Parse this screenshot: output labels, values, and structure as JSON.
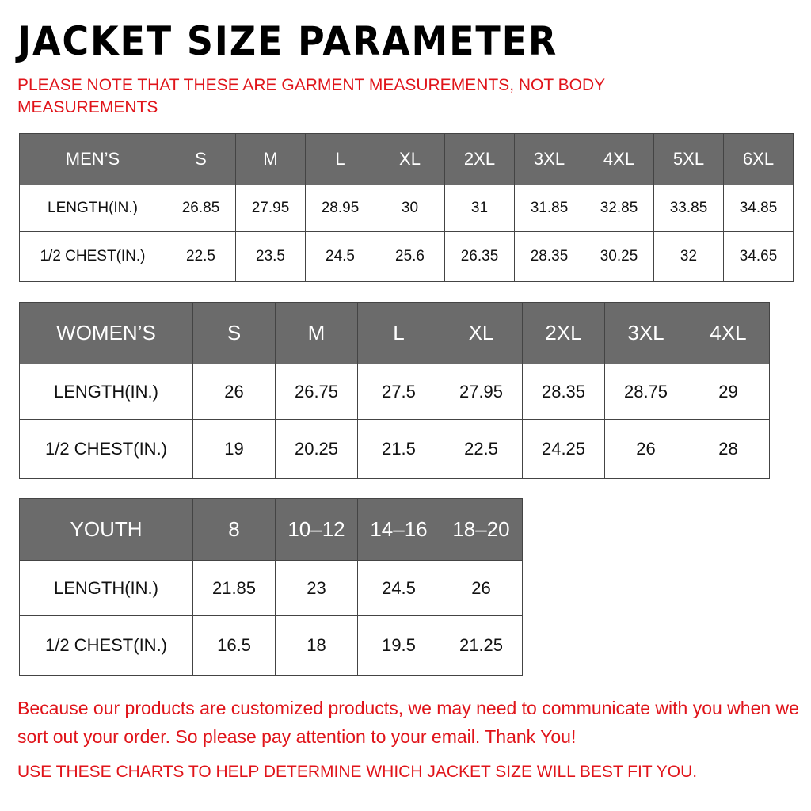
{
  "title": "JACKET SIZE PARAMETER",
  "note": "PLEASE NOTE THAT THESE ARE GARMENT MEASUREMENTS, NOT BODY MEASUREMENTS",
  "colors": {
    "header_bg": "#6b6b6b",
    "accent_red": "#e0141a"
  },
  "tables": {
    "men": {
      "header": [
        "MEN’S",
        "S",
        "M",
        "L",
        "XL",
        "2XL",
        "3XL",
        "4XL",
        "5XL",
        "6XL"
      ],
      "rows": [
        [
          "LENGTH(IN.)",
          "26.85",
          "27.95",
          "28.95",
          "30",
          "31",
          "31.85",
          "32.85",
          "33.85",
          "34.85"
        ],
        [
          "1/2 CHEST(IN.)",
          "22.5",
          "23.5",
          "24.5",
          "25.6",
          "26.35",
          "28.35",
          "30.25",
          "32",
          "34.65"
        ]
      ]
    },
    "women": {
      "header": [
        "WOMEN’S",
        "S",
        "M",
        "L",
        "XL",
        "2XL",
        "3XL",
        "4XL"
      ],
      "rows": [
        [
          "LENGTH(IN.)",
          "26",
          "26.75",
          "27.5",
          "27.95",
          "28.35",
          "28.75",
          "29"
        ],
        [
          "1/2 CHEST(IN.)",
          "19",
          "20.25",
          "21.5",
          "22.5",
          "24.25",
          "26",
          "28"
        ]
      ]
    },
    "youth": {
      "header": [
        "YOUTH",
        "8",
        "10–12",
        "14–16",
        "18–20"
      ],
      "rows": [
        [
          "LENGTH(IN.)",
          "21.85",
          "23",
          "24.5",
          "26"
        ],
        [
          "1/2 CHEST(IN.)",
          "16.5",
          "18",
          "19.5",
          "21.25"
        ]
      ]
    }
  },
  "footer": {
    "message": "Because our products are customized products, we may need to communicate with you when we sort out your order. So please pay attention to your email. Thank You!",
    "advice": "USE THESE CHARTS TO HELP DETERMINE WHICH JACKET SIZE WILL BEST FIT YOU."
  }
}
